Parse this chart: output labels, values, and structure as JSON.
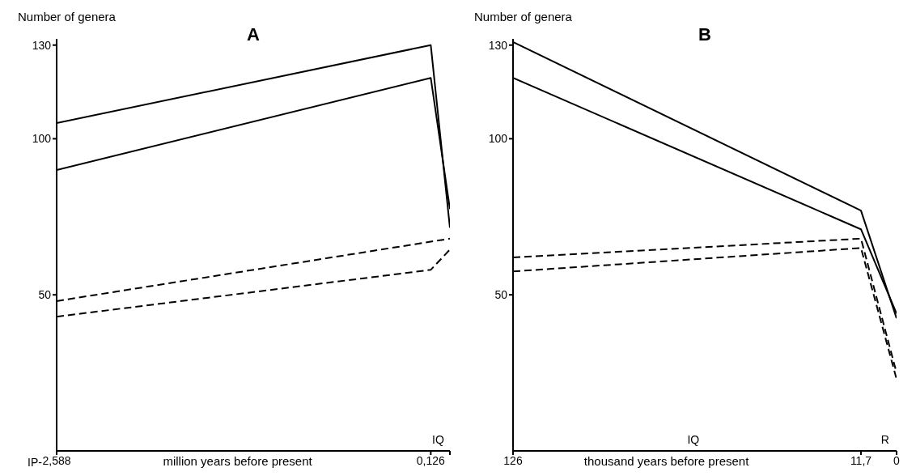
{
  "chart_data": [
    {
      "type": "line",
      "title": "A",
      "ylabel": "Number of genera",
      "xlabel": "million years before present",
      "xlim": [
        2.588,
        0
      ],
      "xticks": [
        {
          "value": 2.588,
          "label": "2,588"
        },
        {
          "value": 0.126,
          "label": "0,126"
        },
        {
          "value": 0,
          "label": null
        }
      ],
      "ylim": [
        0,
        132
      ],
      "yticks": [
        50,
        100,
        130
      ],
      "grid": false,
      "legend": false,
      "marker": "none",
      "annotations": [
        "IP-",
        "IQ"
      ],
      "series": [
        {
          "x": [
            2.588,
            0.126,
            0
          ],
          "values": [
            105,
            130,
            71.5
          ],
          "color": "#000000",
          "line_style": "solid"
        },
        {
          "x": [
            2.588,
            0.126,
            0
          ],
          "values": [
            90,
            119.5,
            77.5
          ],
          "color": "#000000",
          "line_style": "solid"
        },
        {
          "x": [
            2.588,
            0
          ],
          "values": [
            48,
            68
          ],
          "color": "#000000",
          "line_style": "dashed"
        },
        {
          "x": [
            2.588,
            0.126,
            0
          ],
          "values": [
            43,
            58,
            64.5
          ],
          "color": "#000000",
          "line_style": "dashed"
        }
      ]
    },
    {
      "type": "line",
      "title": "B",
      "ylabel": "Number of genera",
      "xlabel": "thousand years before present",
      "xlim": [
        126,
        0
      ],
      "xticks": [
        126,
        {
          "value": 11.7,
          "label": "11,7"
        },
        0
      ],
      "ylim": [
        0,
        132
      ],
      "yticks": [
        50,
        100,
        130
      ],
      "grid": false,
      "legend": false,
      "marker": "none",
      "annotations": [
        "IQ",
        "R"
      ],
      "series": [
        {
          "x": [
            126,
            11.7,
            0
          ],
          "values": [
            131,
            77,
            42.5
          ],
          "color": "#000000",
          "line_style": "solid"
        },
        {
          "x": [
            126,
            11.7,
            0
          ],
          "values": [
            119.5,
            71,
            44
          ],
          "color": "#000000",
          "line_style": "solid"
        },
        {
          "x": [
            126,
            11.7,
            0
          ],
          "values": [
            62,
            68,
            25
          ],
          "color": "#000000",
          "line_style": "dashed"
        },
        {
          "x": [
            126,
            11.7,
            0
          ],
          "values": [
            57.5,
            65,
            23
          ],
          "color": "#000000",
          "line_style": "dashed"
        }
      ]
    }
  ]
}
